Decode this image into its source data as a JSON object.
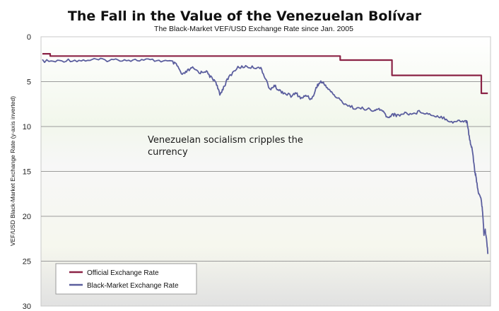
{
  "chart_data": {
    "type": "line",
    "title": "The Fall in the Value of the Venezuelan Bolívar",
    "subtitle": "The Black-Market VEF/USD Exchange Rate since Jan. 2005",
    "xlabel": "",
    "ylabel": "VEF/USD Black-Market Exchange Rate (y-axis inverted)",
    "ylim": [
      0,
      30
    ],
    "y_inverted": true,
    "y_ticks": [
      "0",
      "5",
      "10",
      "15",
      "20",
      "25",
      "30"
    ],
    "grid": true,
    "legend_position": "bottom-left",
    "annotation": [
      "Venezuelan socialism cripples the",
      "currency"
    ],
    "series": [
      {
        "name": "Official Exchange Rate",
        "color": "#8b2346",
        "points": [
          [
            0,
            1.9
          ],
          [
            0.3,
            1.9
          ],
          [
            0.3,
            2.15
          ],
          [
            11.5,
            2.15
          ],
          [
            11.5,
            2.6
          ],
          [
            13.5,
            2.6
          ],
          [
            13.5,
            4.3
          ],
          [
            16.95,
            4.3
          ],
          [
            16.95,
            6.3
          ],
          [
            17.2,
            6.3
          ]
        ]
      },
      {
        "name": "Black-Market Exchange Rate",
        "color": "#5b5e9e",
        "points": [
          [
            0,
            2.7
          ],
          [
            0.5,
            2.75
          ],
          [
            1,
            2.6
          ],
          [
            1.5,
            2.65
          ],
          [
            2,
            2.55
          ],
          [
            2.5,
            2.6
          ],
          [
            3,
            2.55
          ],
          [
            3.5,
            2.6
          ],
          [
            4,
            2.6
          ],
          [
            4.5,
            2.65
          ],
          [
            5,
            2.8
          ],
          [
            5.2,
            3.2
          ],
          [
            5.4,
            4.3
          ],
          [
            5.6,
            3.8
          ],
          [
            5.8,
            3.5
          ],
          [
            6.1,
            4.0
          ],
          [
            6.3,
            3.8
          ],
          [
            6.5,
            4.5
          ],
          [
            6.7,
            5.0
          ],
          [
            6.85,
            6.5
          ],
          [
            7.0,
            5.6
          ],
          [
            7.2,
            4.5
          ],
          [
            7.5,
            3.5
          ],
          [
            7.8,
            3.3
          ],
          [
            8.1,
            3.4
          ],
          [
            8.4,
            3.4
          ],
          [
            8.6,
            4.5
          ],
          [
            8.8,
            6.0
          ],
          [
            8.95,
            5.4
          ],
          [
            9.1,
            5.9
          ],
          [
            9.3,
            6.2
          ],
          [
            9.6,
            6.6
          ],
          [
            9.8,
            6.3
          ],
          [
            10.0,
            6.9
          ],
          [
            10.2,
            6.5
          ],
          [
            10.4,
            7.0
          ],
          [
            10.6,
            5.5
          ],
          [
            10.75,
            5.0
          ],
          [
            10.9,
            5.3
          ],
          [
            11.1,
            6.0
          ],
          [
            11.3,
            6.6
          ],
          [
            11.6,
            7.3
          ],
          [
            11.9,
            7.8
          ],
          [
            12.2,
            8.0
          ],
          [
            12.5,
            8.0
          ],
          [
            12.8,
            8.3
          ],
          [
            13.0,
            8.0
          ],
          [
            13.2,
            8.5
          ],
          [
            13.35,
            9.1
          ],
          [
            13.5,
            8.6
          ],
          [
            13.7,
            8.8
          ],
          [
            14.0,
            8.5
          ],
          [
            14.3,
            8.6
          ],
          [
            14.6,
            8.3
          ],
          [
            14.9,
            8.6
          ],
          [
            15.2,
            8.8
          ],
          [
            15.5,
            9.0
          ],
          [
            15.8,
            9.5
          ],
          [
            16.1,
            9.4
          ],
          [
            16.35,
            9.4
          ],
          [
            16.4,
            9.5
          ],
          [
            16.5,
            11.5
          ],
          [
            16.6,
            12.5
          ],
          [
            16.7,
            15.0
          ],
          [
            16.75,
            15.8
          ],
          [
            16.85,
            17.5
          ],
          [
            16.95,
            18.2
          ],
          [
            17.0,
            19.5
          ],
          [
            17.05,
            22.0
          ],
          [
            17.1,
            21.5
          ],
          [
            17.15,
            22.5
          ],
          [
            17.2,
            24.2
          ]
        ]
      }
    ]
  }
}
